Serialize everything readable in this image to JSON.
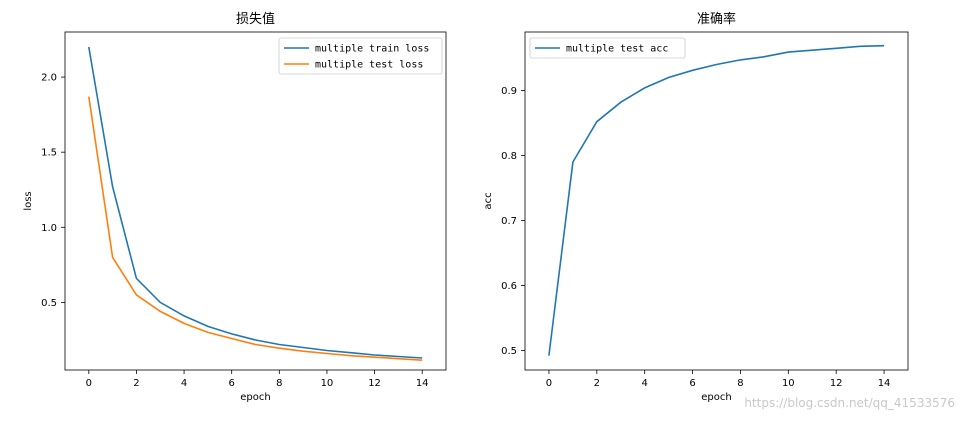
{
  "chart_data": [
    {
      "type": "line",
      "title": "损失值",
      "xlabel": "epoch",
      "ylabel": "loss",
      "xlim": [
        -1,
        15
      ],
      "ylim": [
        0.05,
        2.3
      ],
      "xticks": [
        0,
        2,
        4,
        6,
        8,
        10,
        12,
        14
      ],
      "yticks": [
        0.5,
        1.0,
        1.5,
        2.0
      ],
      "ytick_labels": [
        "0.5",
        "1.0",
        "1.5",
        "2.0"
      ],
      "legend_position": "top-right",
      "x": [
        0,
        1,
        2,
        3,
        4,
        5,
        6,
        7,
        8,
        9,
        10,
        11,
        12,
        13,
        14
      ],
      "series": [
        {
          "name": "multiple train loss",
          "color": "#1f77b4",
          "values": [
            2.2,
            1.27,
            0.66,
            0.5,
            0.41,
            0.34,
            0.29,
            0.25,
            0.22,
            0.2,
            0.18,
            0.165,
            0.15,
            0.14,
            0.13
          ]
        },
        {
          "name": "multiple test loss",
          "color": "#ff7f0e",
          "values": [
            1.87,
            0.8,
            0.55,
            0.44,
            0.36,
            0.3,
            0.26,
            0.22,
            0.195,
            0.175,
            0.16,
            0.145,
            0.135,
            0.125,
            0.115
          ]
        }
      ]
    },
    {
      "type": "line",
      "title": "准确率",
      "xlabel": "epoch",
      "ylabel": "acc",
      "xlim": [
        -1,
        15
      ],
      "ylim": [
        0.47,
        0.99
      ],
      "xticks": [
        0,
        2,
        4,
        6,
        8,
        10,
        12,
        14
      ],
      "yticks": [
        0.5,
        0.6,
        0.7,
        0.8,
        0.9
      ],
      "ytick_labels": [
        "0.5",
        "0.6",
        "0.7",
        "0.8",
        "0.9"
      ],
      "legend_position": "top-left",
      "x": [
        0,
        1,
        2,
        3,
        4,
        5,
        6,
        7,
        8,
        9,
        10,
        11,
        12,
        13,
        14
      ],
      "series": [
        {
          "name": "multiple test acc",
          "color": "#1f77b4",
          "values": [
            0.492,
            0.79,
            0.852,
            0.882,
            0.904,
            0.92,
            0.931,
            0.94,
            0.947,
            0.952,
            0.959,
            0.962,
            0.965,
            0.968,
            0.969
          ]
        }
      ]
    }
  ],
  "watermark": "https://blog.csdn.net/qq_41533576"
}
